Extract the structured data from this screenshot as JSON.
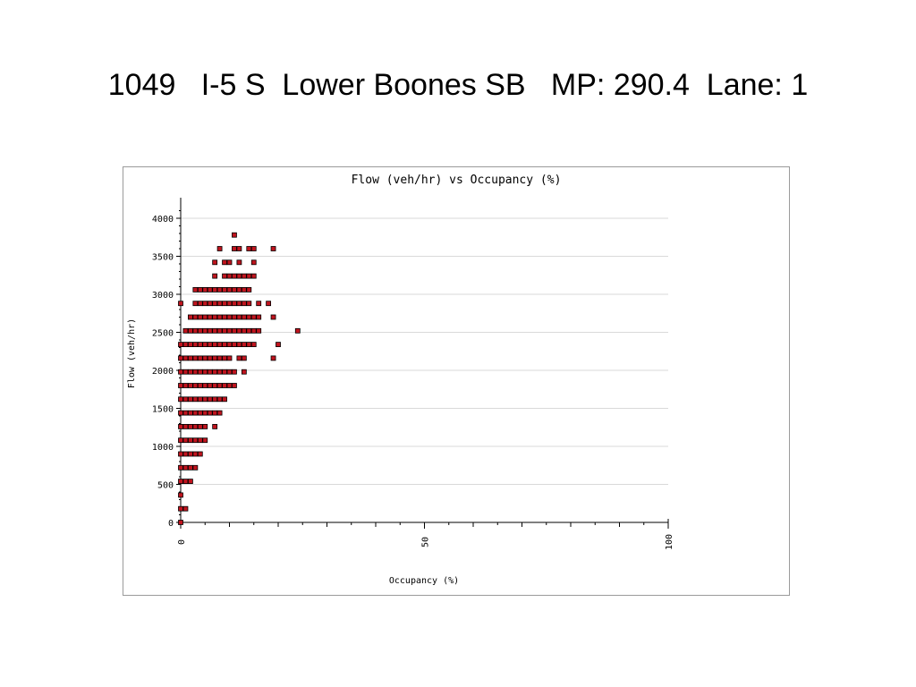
{
  "slide": {
    "title": "1049   I-5 S  Lower Boones SB   MP: 290.4  Lane: 1"
  },
  "colors": {
    "point_fill": "#c0141e",
    "point_stroke": "#000000",
    "gridline": "#d9d9d9",
    "axis": "#000000"
  },
  "chart_data": {
    "type": "scatter",
    "title": "Flow (veh/hr) vs Occupancy (%)",
    "xlabel": "Occupancy (%)",
    "ylabel": "Flow (veh/hr)",
    "xlim": [
      0,
      100
    ],
    "ylim": [
      0,
      4200
    ],
    "xticks": [
      0,
      50,
      100
    ],
    "yticks": [
      0,
      500,
      1000,
      1500,
      2000,
      2500,
      3000,
      3500,
      4000
    ],
    "grid": "horizontal",
    "legend": "none",
    "series": [
      {
        "points": [
          [
            0,
            0
          ],
          [
            0,
            360
          ],
          [
            0,
            180
          ],
          [
            1,
            180
          ],
          [
            0,
            540
          ],
          [
            1,
            540
          ],
          [
            2,
            540
          ],
          [
            0,
            720
          ],
          [
            1,
            720
          ],
          [
            2,
            720
          ],
          [
            3,
            720
          ],
          [
            0,
            900
          ],
          [
            1,
            900
          ],
          [
            2,
            900
          ],
          [
            3,
            900
          ],
          [
            4,
            900
          ],
          [
            0,
            1080
          ],
          [
            1,
            1080
          ],
          [
            2,
            1080
          ],
          [
            3,
            1080
          ],
          [
            4,
            1080
          ],
          [
            5,
            1080
          ],
          [
            0,
            1260
          ],
          [
            1,
            1260
          ],
          [
            2,
            1260
          ],
          [
            3,
            1260
          ],
          [
            4,
            1260
          ],
          [
            5,
            1260
          ],
          [
            7,
            1260
          ],
          [
            0,
            1440
          ],
          [
            1,
            1440
          ],
          [
            2,
            1440
          ],
          [
            3,
            1440
          ],
          [
            4,
            1440
          ],
          [
            5,
            1440
          ],
          [
            6,
            1440
          ],
          [
            7,
            1440
          ],
          [
            8,
            1440
          ],
          [
            0,
            1620
          ],
          [
            1,
            1620
          ],
          [
            2,
            1620
          ],
          [
            3,
            1620
          ],
          [
            4,
            1620
          ],
          [
            5,
            1620
          ],
          [
            6,
            1620
          ],
          [
            7,
            1620
          ],
          [
            8,
            1620
          ],
          [
            9,
            1620
          ],
          [
            0,
            1800
          ],
          [
            1,
            1800
          ],
          [
            2,
            1800
          ],
          [
            3,
            1800
          ],
          [
            4,
            1800
          ],
          [
            5,
            1800
          ],
          [
            6,
            1800
          ],
          [
            7,
            1800
          ],
          [
            8,
            1800
          ],
          [
            9,
            1800
          ],
          [
            10,
            1800
          ],
          [
            11,
            1800
          ],
          [
            0,
            1980
          ],
          [
            1,
            1980
          ],
          [
            2,
            1980
          ],
          [
            3,
            1980
          ],
          [
            4,
            1980
          ],
          [
            5,
            1980
          ],
          [
            6,
            1980
          ],
          [
            7,
            1980
          ],
          [
            8,
            1980
          ],
          [
            9,
            1980
          ],
          [
            10,
            1980
          ],
          [
            11,
            1980
          ],
          [
            13,
            1980
          ],
          [
            0,
            2160
          ],
          [
            1,
            2160
          ],
          [
            2,
            2160
          ],
          [
            3,
            2160
          ],
          [
            4,
            2160
          ],
          [
            5,
            2160
          ],
          [
            6,
            2160
          ],
          [
            7,
            2160
          ],
          [
            8,
            2160
          ],
          [
            9,
            2160
          ],
          [
            10,
            2160
          ],
          [
            12,
            2160
          ],
          [
            13,
            2160
          ],
          [
            19,
            2160
          ],
          [
            0,
            2340
          ],
          [
            1,
            2340
          ],
          [
            2,
            2340
          ],
          [
            3,
            2340
          ],
          [
            4,
            2340
          ],
          [
            5,
            2340
          ],
          [
            6,
            2340
          ],
          [
            7,
            2340
          ],
          [
            8,
            2340
          ],
          [
            9,
            2340
          ],
          [
            10,
            2340
          ],
          [
            11,
            2340
          ],
          [
            12,
            2340
          ],
          [
            13,
            2340
          ],
          [
            14,
            2340
          ],
          [
            15,
            2340
          ],
          [
            20,
            2340
          ],
          [
            1,
            2520
          ],
          [
            2,
            2520
          ],
          [
            3,
            2520
          ],
          [
            4,
            2520
          ],
          [
            5,
            2520
          ],
          [
            6,
            2520
          ],
          [
            7,
            2520
          ],
          [
            8,
            2520
          ],
          [
            9,
            2520
          ],
          [
            10,
            2520
          ],
          [
            11,
            2520
          ],
          [
            12,
            2520
          ],
          [
            13,
            2520
          ],
          [
            14,
            2520
          ],
          [
            15,
            2520
          ],
          [
            16,
            2520
          ],
          [
            24,
            2520
          ],
          [
            2,
            2700
          ],
          [
            3,
            2700
          ],
          [
            4,
            2700
          ],
          [
            5,
            2700
          ],
          [
            6,
            2700
          ],
          [
            7,
            2700
          ],
          [
            8,
            2700
          ],
          [
            9,
            2700
          ],
          [
            10,
            2700
          ],
          [
            11,
            2700
          ],
          [
            12,
            2700
          ],
          [
            13,
            2700
          ],
          [
            14,
            2700
          ],
          [
            15,
            2700
          ],
          [
            16,
            2700
          ],
          [
            19,
            2700
          ],
          [
            0,
            2880
          ],
          [
            3,
            2880
          ],
          [
            4,
            2880
          ],
          [
            5,
            2880
          ],
          [
            6,
            2880
          ],
          [
            7,
            2880
          ],
          [
            8,
            2880
          ],
          [
            9,
            2880
          ],
          [
            10,
            2880
          ],
          [
            11,
            2880
          ],
          [
            12,
            2880
          ],
          [
            13,
            2880
          ],
          [
            14,
            2880
          ],
          [
            16,
            2880
          ],
          [
            18,
            2880
          ],
          [
            3,
            3060
          ],
          [
            4,
            3060
          ],
          [
            5,
            3060
          ],
          [
            6,
            3060
          ],
          [
            7,
            3060
          ],
          [
            8,
            3060
          ],
          [
            9,
            3060
          ],
          [
            10,
            3060
          ],
          [
            11,
            3060
          ],
          [
            12,
            3060
          ],
          [
            13,
            3060
          ],
          [
            14,
            3060
          ],
          [
            7,
            3240
          ],
          [
            9,
            3240
          ],
          [
            10,
            3240
          ],
          [
            11,
            3240
          ],
          [
            12,
            3240
          ],
          [
            13,
            3240
          ],
          [
            14,
            3240
          ],
          [
            15,
            3240
          ],
          [
            7,
            3420
          ],
          [
            9,
            3420
          ],
          [
            10,
            3420
          ],
          [
            12,
            3420
          ],
          [
            15,
            3420
          ],
          [
            8,
            3600
          ],
          [
            11,
            3600
          ],
          [
            12,
            3600
          ],
          [
            14,
            3600
          ],
          [
            15,
            3600
          ],
          [
            19,
            3600
          ],
          [
            11,
            3780
          ]
        ]
      }
    ]
  }
}
